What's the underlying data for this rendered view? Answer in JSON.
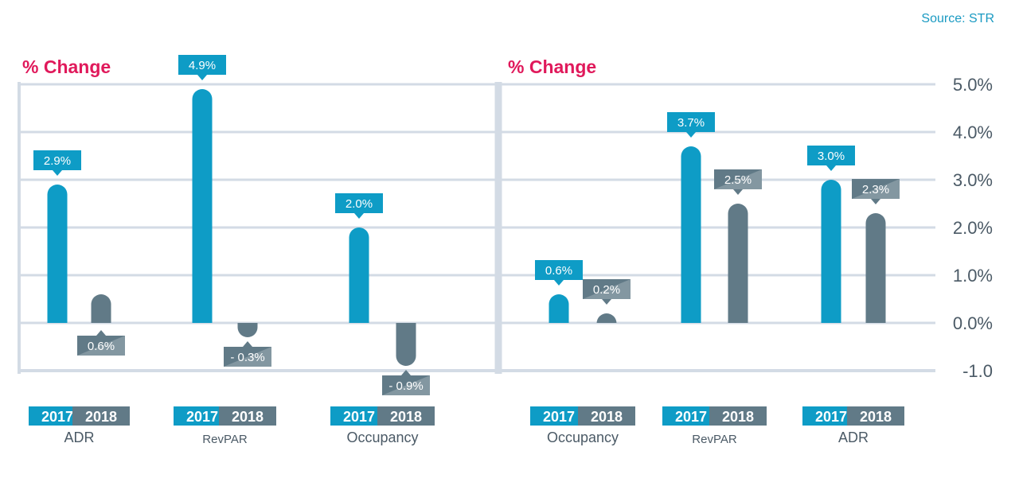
{
  "source": "Source: STR",
  "colors": {
    "accent": "#e0195b",
    "source_text": "#1a9ac2",
    "bar_2017": "#0e9cc6",
    "bar_2018": "#617a87",
    "frame": "#d3dbe5",
    "axis_text": "#4b5a66"
  },
  "chart_data": [
    {
      "type": "bar",
      "title": "% Change",
      "categories": [
        "ADR",
        "RevPAR",
        "Occupancy"
      ],
      "series": [
        {
          "name": "2017",
          "values": [
            2.9,
            4.9,
            2.0
          ],
          "labels": [
            "2.9%",
            "4.9%",
            "2.0%"
          ]
        },
        {
          "name": "2018",
          "values": [
            0.6,
            -0.3,
            -0.9
          ],
          "labels": [
            "0.6%",
            "- 0.3%",
            "- 0.9%"
          ]
        }
      ],
      "ylim": [
        -1.0,
        5.0
      ],
      "grid": true
    },
    {
      "type": "bar",
      "title": "% Change",
      "categories": [
        "Occupancy",
        "RevPAR",
        "ADR"
      ],
      "series": [
        {
          "name": "2017",
          "values": [
            0.6,
            3.7,
            3.0
          ],
          "labels": [
            "0.6%",
            "3.7%",
            "3.0%"
          ]
        },
        {
          "name": "2018",
          "values": [
            0.2,
            2.5,
            2.3
          ],
          "labels": [
            "0.2%",
            "2.5%",
            "2.3%"
          ]
        }
      ],
      "ylim": [
        -1.0,
        5.0
      ],
      "yticks": [
        "5.0%",
        "4.0%",
        "3.0%",
        "2.0%",
        "1.0%",
        "0.0%",
        "-1.0"
      ],
      "grid": true
    }
  ]
}
